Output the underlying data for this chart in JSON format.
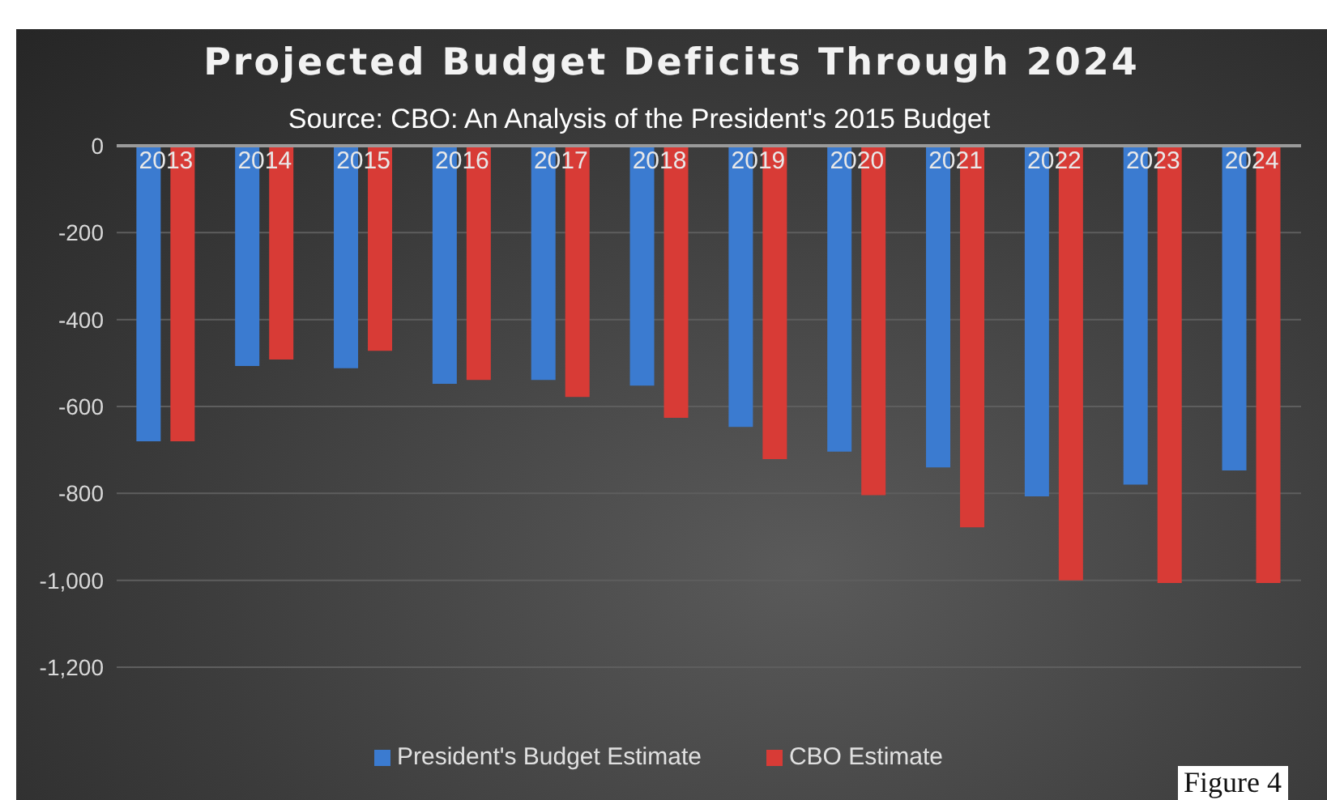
{
  "chart_data": {
    "type": "bar",
    "title": "Projected Budget Deficits Through 2024",
    "subtitle": "Source: CBO: An Analysis of the President's 2015 Budget",
    "categories": [
      "2013",
      "2014",
      "2015",
      "2016",
      "2017",
      "2018",
      "2019",
      "2020",
      "2021",
      "2022",
      "2023",
      "2024"
    ],
    "series": [
      {
        "name": "President's Budget Estimate",
        "color": "#3b7bd0",
        "values": [
          -680,
          -507,
          -512,
          -548,
          -539,
          -552,
          -647,
          -704,
          -740,
          -807,
          -780,
          -747
        ]
      },
      {
        "name": "CBO Estimate",
        "color": "#d83b36",
        "values": [
          -680,
          -492,
          -472,
          -539,
          -578,
          -626,
          -721,
          -804,
          -878,
          -1000,
          -1006,
          -1006
        ]
      }
    ],
    "ylim": [
      -1200,
      0
    ],
    "yticks": [
      0,
      -200,
      -400,
      -600,
      -800,
      {
        "value": -1000,
        "label": "-1,000"
      },
      {
        "value": -1200,
        "label": "-1,200"
      }
    ],
    "grid": "y",
    "legend": "bottom",
    "annotations": [
      "Figure 4"
    ]
  }
}
